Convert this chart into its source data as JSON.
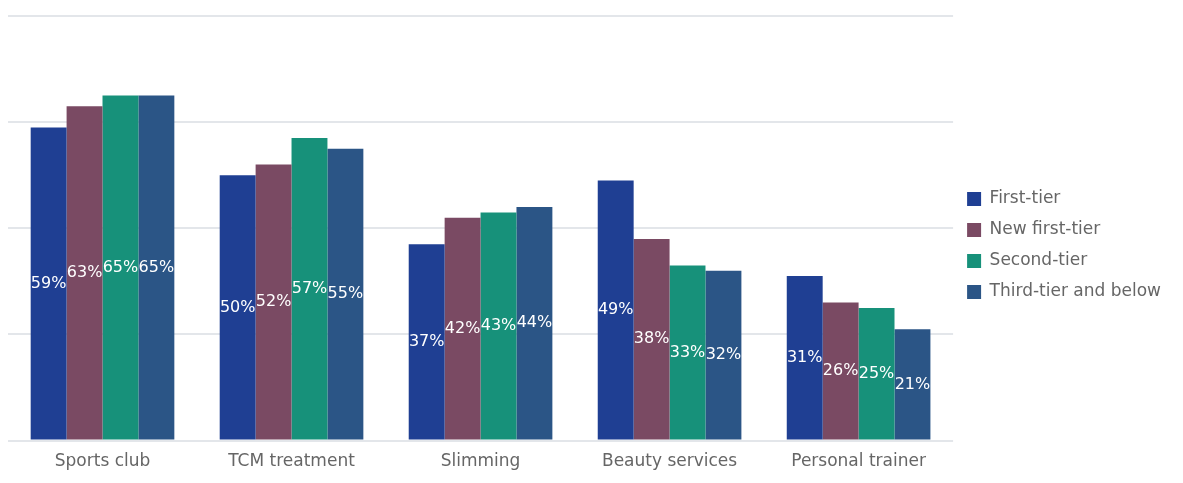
{
  "chart_data": {
    "type": "bar",
    "categories": [
      "Sports club",
      "TCM treatment",
      "Slimming",
      "Beauty services",
      "Personal trainer"
    ],
    "series": [
      {
        "name": "First-tier",
        "color": "#1f3f93",
        "values": [
          59,
          50,
          37,
          49,
          31
        ],
        "value_labels": [
          "59%",
          "50%",
          "37%",
          "49%",
          "31%"
        ]
      },
      {
        "name": "New first-tier",
        "color": "#7a4a63",
        "values": [
          63,
          52,
          42,
          38,
          26
        ],
        "value_labels": [
          "63%",
          "52%",
          "42%",
          "38%",
          "26%"
        ]
      },
      {
        "name": "Second-tier",
        "color": "#17917a",
        "values": [
          65,
          57,
          43,
          33,
          25
        ],
        "value_labels": [
          "65%",
          "57%",
          "43%",
          "33%",
          "25%"
        ]
      },
      {
        "name": "Third-tier and below",
        "color": "#2b5586",
        "values": [
          65,
          55,
          44,
          32,
          21
        ],
        "value_labels": [
          "65%",
          "55%",
          "44%",
          "32%",
          "21%"
        ]
      }
    ],
    "tick_labels": "x",
    "grid": "y",
    "legend": "right"
  }
}
